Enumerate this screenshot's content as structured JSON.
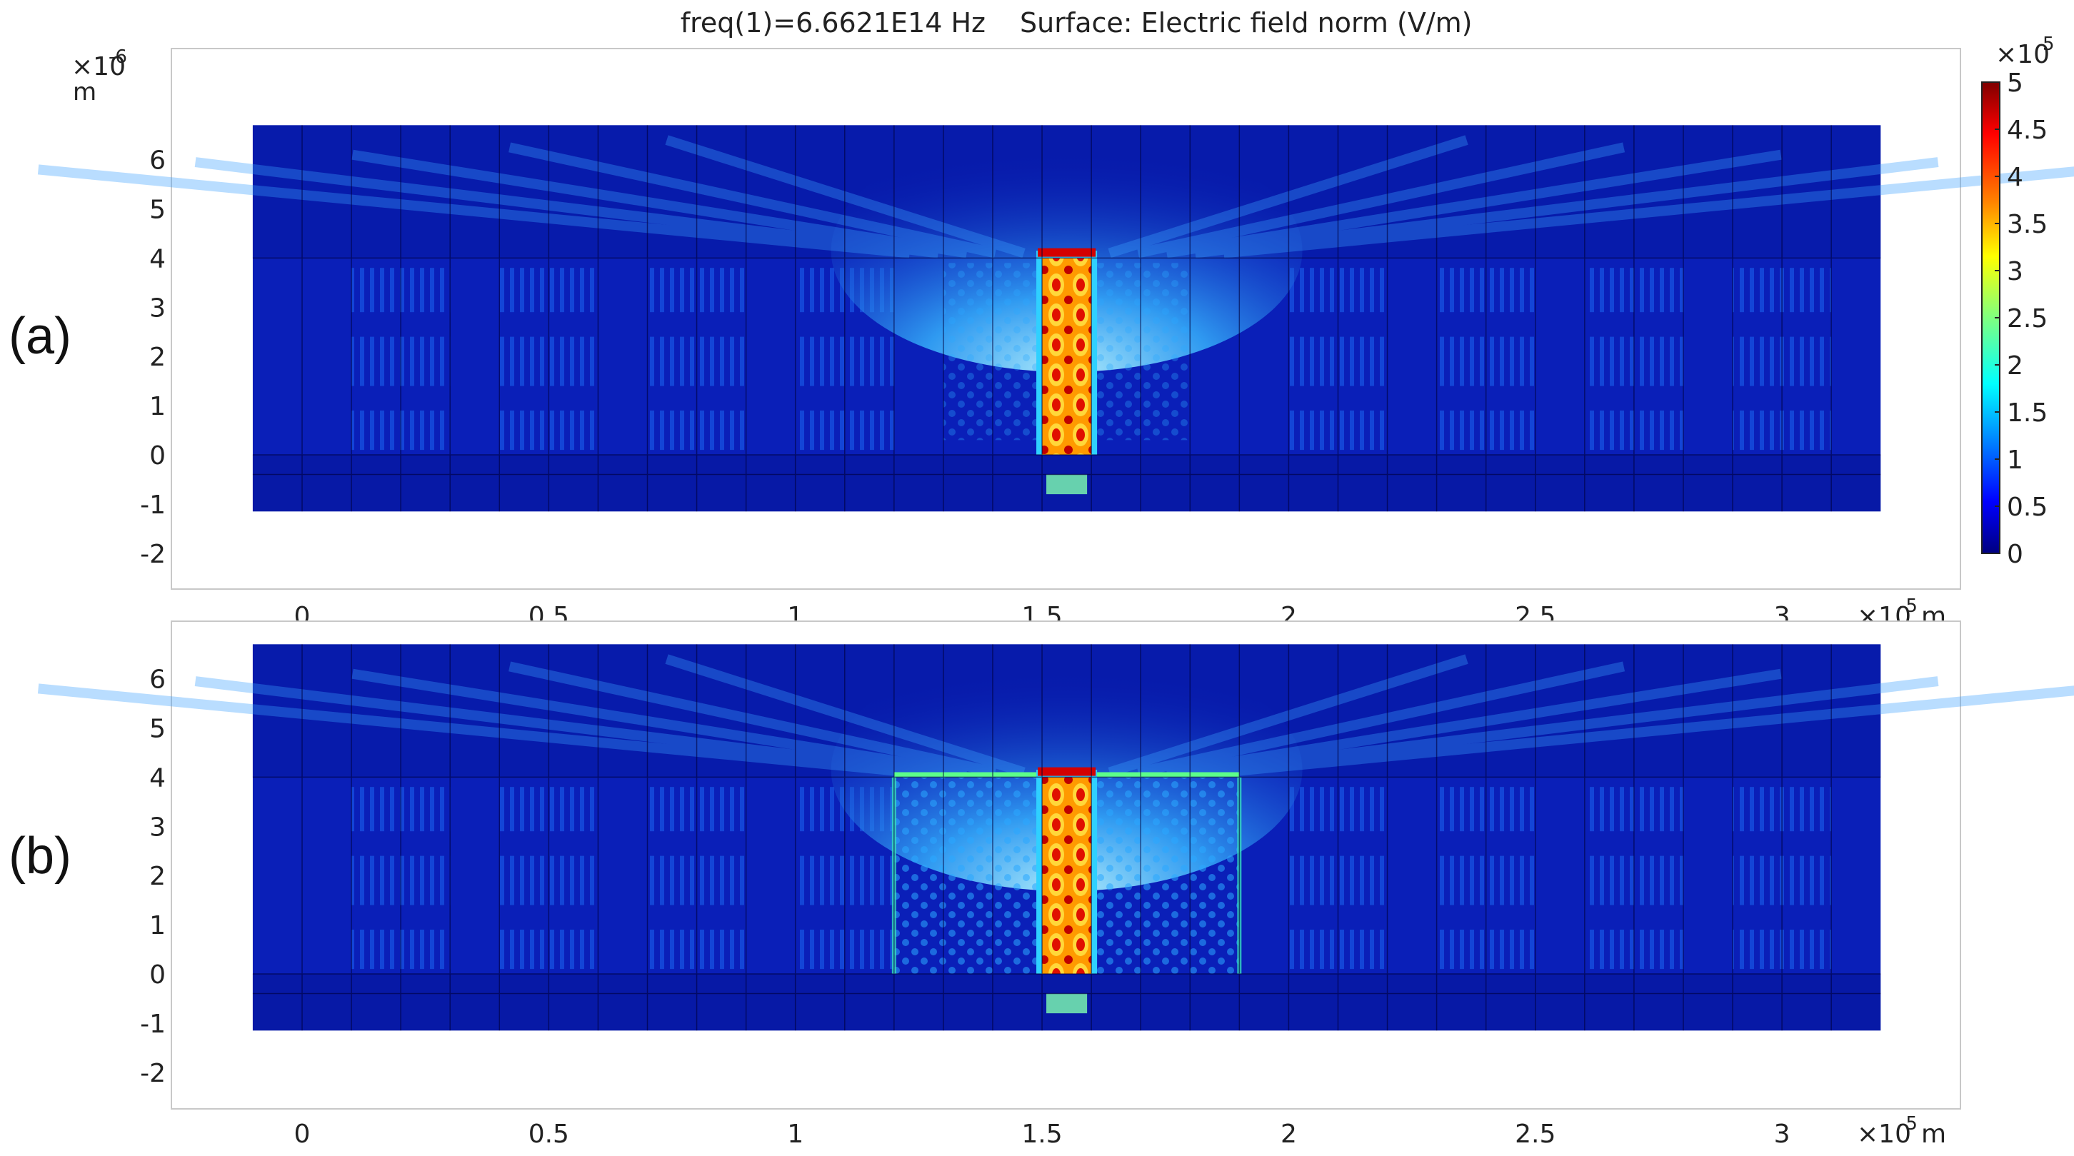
{
  "figure": {
    "title_freq": "freq(1)=6.6621E14 Hz",
    "title_surface": "Surface: Electric field norm (V/m)",
    "y_unit": "m",
    "y_scale_base": "×10",
    "y_scale_exp": "-6",
    "x_unit": "m",
    "x_scale_base": "×10",
    "x_scale_exp": "-5",
    "colorbar_scale_base": "×10",
    "colorbar_scale_exp": "5"
  },
  "colors": {
    "jet": [
      "#00007f",
      "#0000ff",
      "#007fff",
      "#00ffff",
      "#7fff7f",
      "#ffff00",
      "#ff7f00",
      "#ff0000",
      "#7f0000"
    ],
    "background_field": "#0a1fb8",
    "mesh_lines": "#00003a"
  },
  "chart_data": [
    {
      "type": "heatmap",
      "panel_label": "(a)",
      "title": "freq(1)=6.6621E14 Hz   Surface: Electric field norm (V/m)",
      "quantity": "Electric field norm (V/m)",
      "x_ticks": [
        0,
        0.5,
        1,
        1.5,
        2,
        2.5,
        3
      ],
      "y_ticks": [
        6,
        5,
        4,
        3,
        2,
        1,
        0,
        -1,
        -2
      ],
      "xlim": [
        -0.27,
        3.37
      ],
      "ylim": [
        -2.7,
        7.5
      ],
      "x_scale": "1e-5 m",
      "y_scale": "1e-6 m",
      "domain_x": [
        -0.1,
        3.2
      ],
      "domain_y": [
        -1.15,
        6.7
      ],
      "colorbar": {
        "min": 0,
        "max": 5,
        "ticks": [
          5,
          4.5,
          4,
          3.5,
          3,
          2.5,
          2,
          1.5,
          1,
          0.5,
          0
        ],
        "scale": "1e5"
      },
      "hotspots": [
        {
          "region": "central column",
          "x_range": [
            1.5,
            1.6
          ],
          "y_range": [
            0,
            4.1
          ],
          "level": 5
        },
        {
          "region": "top emission cone",
          "x_range": [
            1.4,
            1.7
          ],
          "y_range": [
            4.2,
            6.0
          ],
          "level": 2
        }
      ]
    },
    {
      "type": "heatmap",
      "panel_label": "(b)",
      "quantity": "Electric field norm (V/m)",
      "x_ticks": [
        0,
        0.5,
        1,
        1.5,
        2,
        2.5,
        3
      ],
      "y_ticks": [
        6,
        5,
        4,
        3,
        2,
        1,
        0,
        -1,
        -2
      ],
      "xlim": [
        -0.27,
        3.37
      ],
      "ylim": [
        -2.7,
        7.5
      ],
      "x_scale": "1e-5 m",
      "y_scale": "1e-6 m",
      "domain_x": [
        -0.1,
        3.2
      ],
      "domain_y": [
        -1.15,
        6.7
      ],
      "colorbar": {
        "min": 0,
        "max": 5,
        "ticks": [
          5,
          4.5,
          4,
          3.5,
          3,
          2.5,
          2,
          1.5,
          1,
          0.5,
          0
        ],
        "scale": "1e5"
      },
      "hotspots": [
        {
          "region": "central column",
          "x_range": [
            1.5,
            1.6
          ],
          "y_range": [
            0,
            4.1
          ],
          "level": 5
        },
        {
          "region": "side cavity walls",
          "x_range": [
            1.2,
            1.9
          ],
          "y_range": [
            0,
            4.0
          ],
          "level": 2.5
        },
        {
          "region": "top emission cone",
          "x_range": [
            1.4,
            1.7
          ],
          "y_range": [
            4.2,
            6.0
          ],
          "level": 2.5
        }
      ]
    }
  ]
}
